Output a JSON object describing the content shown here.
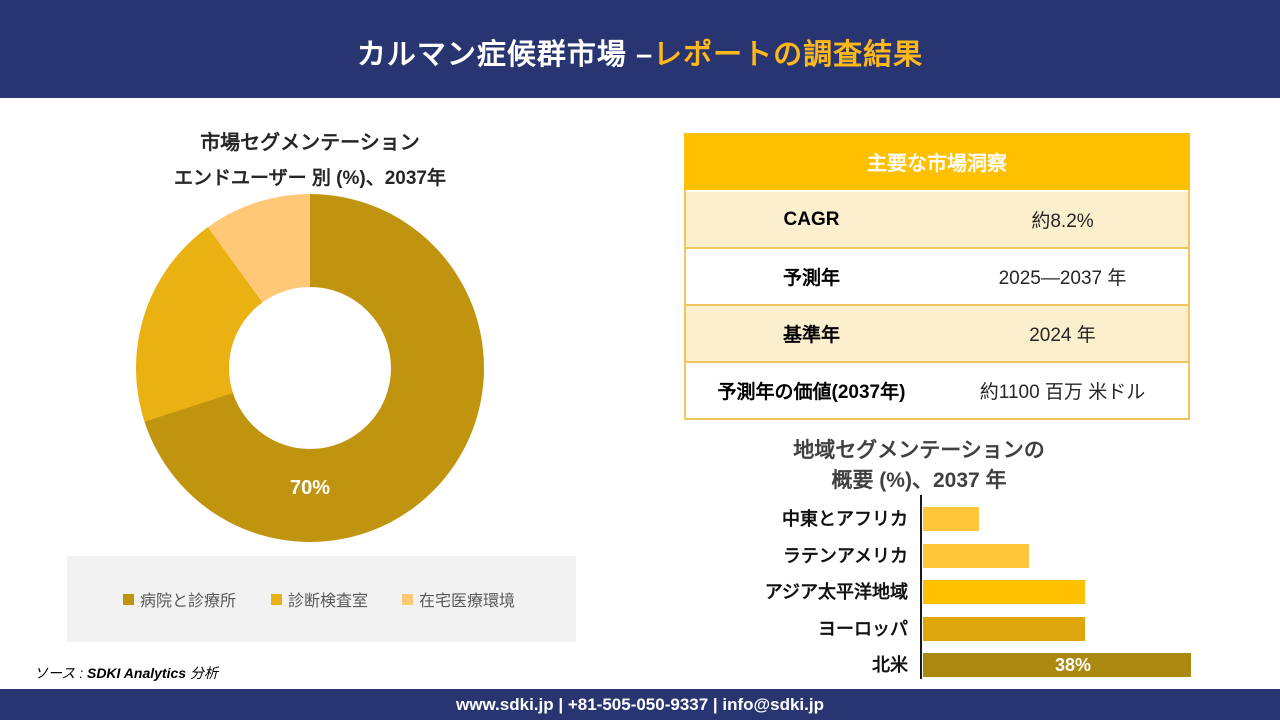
{
  "header": {
    "title_main": "カルマン症候群市場 –",
    "title_accent": "レポートの調査結果"
  },
  "theme": {
    "navy": "#293570",
    "accent_gold": "#FFB81C",
    "table_header_bg": "#FFC000",
    "table_row_cream": "#FCEFCE",
    "table_border": "#EFC75C",
    "legend_bg": "#F2F2F2"
  },
  "chart_data": [
    {
      "type": "pie",
      "subtype": "donut",
      "title_lines": [
        "市場セグメンテーション",
        "エンドユーザー 別 (%)、2037年"
      ],
      "labels": [
        "病院と診療所",
        "診断検査室",
        "在宅医療環境"
      ],
      "values": [
        70,
        20,
        10
      ],
      "colors": [
        "#C0940F",
        "#E9B112",
        "#FFC876"
      ],
      "data_labels": [
        "70%",
        "",
        ""
      ],
      "hole_ratio": 0.47,
      "legend_position": "bottom"
    },
    {
      "type": "bar",
      "orientation": "horizontal",
      "title_lines": [
        "地域セグメンテーションの",
        "概要 (%)、2037 年"
      ],
      "categories": [
        "中東とアフリカ",
        "ラテンアメリカ",
        "アジア太平洋地域",
        "ヨーロッパ",
        "北米"
      ],
      "values": [
        8,
        15,
        23,
        23,
        38
      ],
      "data_labels": [
        "",
        "",
        "",
        "",
        "38%"
      ],
      "colors": [
        "#FFC63C",
        "#FFC63C",
        "#FFC000",
        "#DDA60D",
        "#AB880F"
      ],
      "xlim": [
        0,
        40
      ],
      "grid": false
    }
  ],
  "insights_table": {
    "header": "主要な市場洞察",
    "rows": [
      {
        "label": "CAGR",
        "value": "約8.2%"
      },
      {
        "label": "予測年",
        "value": "2025—2037 年"
      },
      {
        "label": "基準年",
        "value": "2024 年"
      },
      {
        "label": "予測年の価値(2037年)",
        "value": "約1100 百万 米ドル"
      }
    ]
  },
  "source": {
    "prefix": "ソース : ",
    "brand": "SDKI Analytics",
    "suffix": " 分析"
  },
  "footer": {
    "contact": "www.sdki.jp | +81-505-050-9337 | info@sdki.jp"
  }
}
